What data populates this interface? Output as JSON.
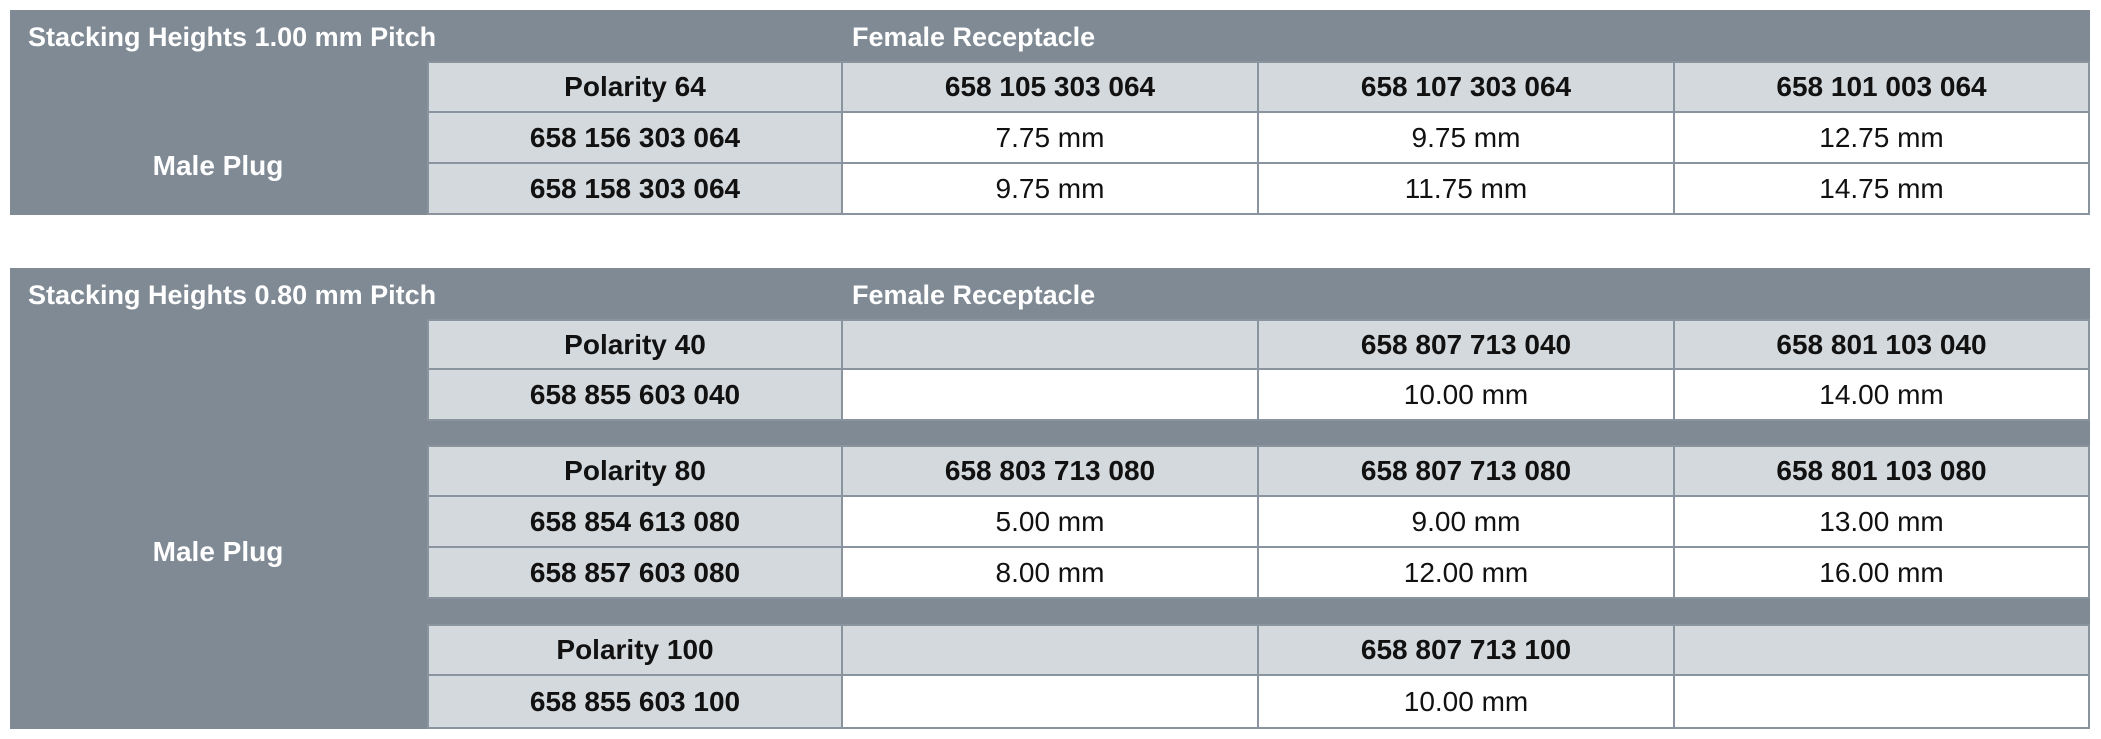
{
  "table1": {
    "title": "Stacking Heights 1.00 mm Pitch",
    "female_label": "Female Receptacle",
    "male_label": "Male Plug",
    "header": [
      "Polarity 64",
      "658 105 303 064",
      "658 107 303 064",
      "658 101 003 064"
    ],
    "rows": [
      [
        "658 156 303 064",
        "7.75 mm",
        "9.75 mm",
        "12.75 mm"
      ],
      [
        "658 158 303 064",
        "9.75 mm",
        "11.75 mm",
        "14.75 mm"
      ]
    ]
  },
  "table2": {
    "title": "Stacking Heights 0.80 mm Pitch",
    "female_label": "Female Receptacle",
    "male_label": "Male Plug",
    "groups": [
      {
        "header": [
          "Polarity 40",
          "",
          "658 807 713 040",
          "658 801 103 040"
        ],
        "rows": [
          [
            "658 855 603 040",
            "",
            "10.00 mm",
            "14.00 mm"
          ]
        ]
      },
      {
        "header": [
          "Polarity 80",
          "658 803 713 080",
          "658 807 713 080",
          "658 801 103 080"
        ],
        "rows": [
          [
            "658 854 613 080",
            "5.00 mm",
            "9.00 mm",
            "13.00 mm"
          ],
          [
            "658 857 603 080",
            "8.00 mm",
            "12.00 mm",
            "16.00 mm"
          ]
        ]
      },
      {
        "header": [
          "Polarity 100",
          "",
          "658 807 713 100",
          ""
        ],
        "rows": [
          [
            "658 855 603 100",
            "",
            "10.00 mm",
            ""
          ]
        ]
      }
    ]
  }
}
